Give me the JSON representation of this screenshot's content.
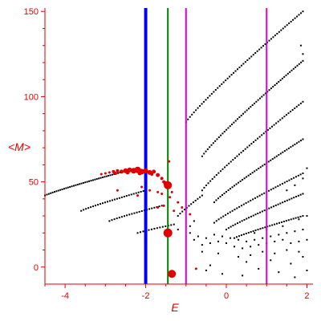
{
  "chart_data": {
    "type": "scatter",
    "title": "",
    "xlabel": "E",
    "ylabel": "<M>",
    "xlim": [
      -4.5,
      2.15
    ],
    "ylim": [
      -10,
      152
    ],
    "grid": false,
    "legend": "none",
    "x_ticks": [
      -4,
      -2,
      0,
      2
    ],
    "x_tick_labels": [
      "-4",
      "-2",
      "0",
      "2"
    ],
    "y_ticks": [
      0,
      50,
      100,
      150
    ],
    "y_tick_labels": [
      "0",
      "50",
      "100",
      "150"
    ],
    "colors": {
      "axis": "#e00000",
      "black_points": "#000000",
      "red_points": "#e00000",
      "blue_line": "#0000ff",
      "green_line": "#008000",
      "magenta_line": "#dd00dd"
    },
    "vertical_lines": [
      {
        "x": -2.0,
        "color": "#0000ff"
      },
      {
        "x": -1.45,
        "color": "#008000"
      },
      {
        "x": -1.0,
        "color": "#dd00dd"
      },
      {
        "x": 1.0,
        "color": "#dd00dd"
      }
    ],
    "black_curves": [
      {
        "from": [
          -4.5,
          42
        ],
        "to": [
          -2.4,
          57
        ],
        "n": 45
      },
      {
        "from": [
          -3.6,
          33
        ],
        "to": [
          -2.0,
          45
        ],
        "n": 28
      },
      {
        "from": [
          -2.9,
          27
        ],
        "to": [
          -1.6,
          36
        ],
        "n": 22
      },
      {
        "from": [
          -2.2,
          20
        ],
        "to": [
          -1.3,
          25
        ],
        "n": 14
      },
      {
        "from": [
          -1.0,
          85
        ],
        "to": [
          1.9,
          150
        ],
        "n": 60
      },
      {
        "from": [
          -0.6,
          65
        ],
        "to": [
          1.9,
          121
        ],
        "n": 55
      },
      {
        "from": [
          -0.6,
          45
        ],
        "to": [
          1.9,
          97
        ],
        "n": 50
      },
      {
        "from": [
          -0.3,
          38
        ],
        "to": [
          1.9,
          75
        ],
        "n": 45
      },
      {
        "from": [
          -0.3,
          26
        ],
        "to": [
          1.9,
          55
        ],
        "n": 40
      },
      {
        "from": [
          0.0,
          22
        ],
        "to": [
          1.9,
          43
        ],
        "n": 35
      },
      {
        "from": [
          0.2,
          17
        ],
        "to": [
          1.9,
          30
        ],
        "n": 30
      },
      {
        "from": [
          -1.2,
          30
        ],
        "to": [
          -0.6,
          42
        ],
        "n": 12
      }
    ],
    "black_scattered": [
      [
        -0.8,
        16
      ],
      [
        -0.6,
        13
      ],
      [
        -0.4,
        14
      ],
      [
        -0.2,
        15
      ],
      [
        0.0,
        14
      ],
      [
        0.2,
        12
      ],
      [
        0.4,
        11
      ],
      [
        0.6,
        12
      ],
      [
        0.8,
        13
      ],
      [
        1.0,
        14
      ],
      [
        1.2,
        15
      ],
      [
        1.4,
        16
      ],
      [
        1.6,
        14
      ],
      [
        1.8,
        15
      ],
      [
        2.0,
        16
      ],
      [
        -0.7,
        18
      ],
      [
        -0.5,
        17
      ],
      [
        -0.3,
        19
      ],
      [
        -0.1,
        18
      ],
      [
        0.1,
        17
      ],
      [
        0.3,
        16
      ],
      [
        0.5,
        15
      ],
      [
        0.7,
        16
      ],
      [
        0.9,
        17
      ],
      [
        1.1,
        18
      ],
      [
        1.3,
        19
      ],
      [
        1.5,
        20
      ],
      [
        1.7,
        21
      ],
      [
        1.9,
        22
      ],
      [
        -0.9,
        20
      ],
      [
        -0.6,
        9
      ],
      [
        -0.2,
        8
      ],
      [
        0.3,
        6
      ],
      [
        0.6,
        7
      ],
      [
        0.9,
        9
      ],
      [
        1.2,
        8
      ],
      [
        1.5,
        10
      ],
      [
        1.8,
        9
      ],
      [
        -0.5,
        -2
      ],
      [
        -0.1,
        -4
      ],
      [
        0.4,
        -5
      ],
      [
        0.8,
        -1
      ],
      [
        1.3,
        -3
      ],
      [
        1.7,
        -6
      ],
      [
        2.0,
        -2
      ],
      [
        -0.4,
        1
      ],
      [
        0.5,
        3
      ],
      [
        1.1,
        4
      ],
      [
        1.6,
        2
      ],
      [
        1.9,
        6
      ],
      [
        0.7,
        20
      ],
      [
        1.0,
        22
      ],
      [
        1.4,
        24
      ],
      [
        1.8,
        28
      ],
      [
        2.0,
        30
      ],
      [
        -0.9,
        24
      ],
      [
        -1.2,
        22
      ],
      [
        -0.8,
        27
      ],
      [
        1.5,
        45
      ],
      [
        1.7,
        48
      ],
      [
        1.9,
        52
      ],
      [
        2.0,
        58
      ],
      [
        1.85,
        130
      ],
      [
        1.9,
        125
      ]
    ],
    "red_points": [
      [
        -3.0,
        55,
        1.5
      ],
      [
        -2.9,
        55.5,
        1.5
      ],
      [
        -2.8,
        56,
        2
      ],
      [
        -2.7,
        56.5,
        2
      ],
      [
        -2.6,
        56,
        2.5
      ],
      [
        -2.5,
        56.5,
        3
      ],
      [
        -2.4,
        57,
        3
      ],
      [
        -2.3,
        56.5,
        3.5
      ],
      [
        -2.2,
        57,
        4
      ],
      [
        -2.1,
        56,
        3.5
      ],
      [
        -2.0,
        56.5,
        3
      ],
      [
        -1.9,
        55.5,
        3
      ],
      [
        -1.8,
        56,
        2.5
      ],
      [
        -1.7,
        54,
        2.5
      ],
      [
        -1.6,
        52,
        2
      ],
      [
        -1.55,
        50,
        2
      ],
      [
        -1.5,
        49,
        3
      ],
      [
        -1.45,
        48,
        5
      ],
      [
        -1.42,
        62,
        1.5
      ],
      [
        -3.1,
        54.5,
        1.5
      ],
      [
        -2.75,
        55,
        2
      ],
      [
        -2.45,
        55.5,
        2.5
      ],
      [
        -2.15,
        55,
        2.5
      ],
      [
        -1.85,
        54.5,
        2
      ],
      [
        -2.7,
        45,
        1.5
      ],
      [
        -2.1,
        47,
        1.5
      ],
      [
        -1.9,
        45,
        1.5
      ],
      [
        -1.7,
        44,
        1.5
      ],
      [
        -1.6,
        43,
        1.5
      ],
      [
        -1.4,
        41,
        1.5
      ],
      [
        -1.35,
        44,
        1.5
      ],
      [
        -2.2,
        42,
        1.5
      ],
      [
        -1.55,
        36,
        1.5
      ],
      [
        -1.2,
        38,
        1.5
      ],
      [
        -1.1,
        35,
        1.5
      ],
      [
        -1.3,
        33,
        1.5
      ],
      [
        -0.9,
        31,
        1.5
      ],
      [
        -1.7,
        35,
        1.5
      ],
      [
        -1.45,
        20,
        5.5
      ],
      [
        -1.35,
        -4,
        5
      ],
      [
        -0.75,
        -1,
        1.5
      ]
    ]
  }
}
